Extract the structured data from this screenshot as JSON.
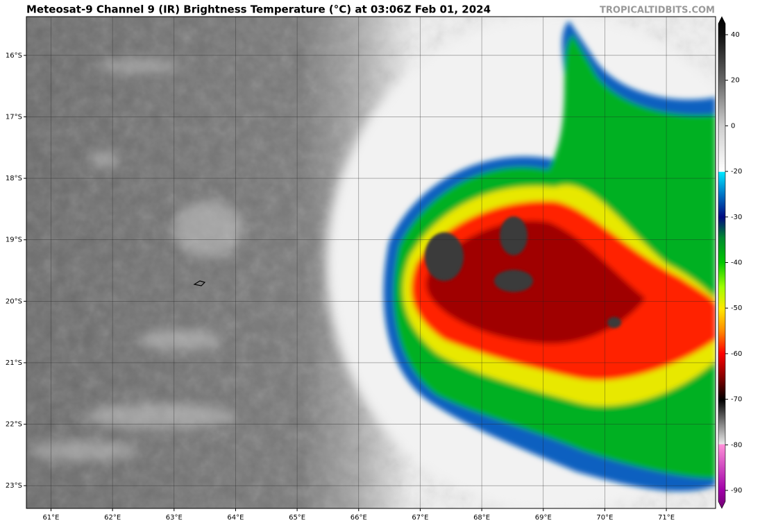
{
  "header": {
    "title": "Meteosat-9 Channel 9 (IR) Brightness Temperature (°C) at 03:06Z Feb 01, 2024",
    "credit": "TROPICALTIDBITS.COM"
  },
  "map": {
    "lonlim": [
      60.6,
      71.8
    ],
    "latlim": [
      -15.37,
      -23.37
    ],
    "lon_ticks": [
      {
        "value": 61,
        "label": "61°E"
      },
      {
        "value": 62,
        "label": "62°E"
      },
      {
        "value": 63,
        "label": "63°E"
      },
      {
        "value": 64,
        "label": "64°E"
      },
      {
        "value": 65,
        "label": "65°E"
      },
      {
        "value": 66,
        "label": "66°E"
      },
      {
        "value": 67,
        "label": "67°E"
      },
      {
        "value": 68,
        "label": "68°E"
      },
      {
        "value": 69,
        "label": "69°E"
      },
      {
        "value": 70,
        "label": "70°E"
      },
      {
        "value": 71,
        "label": "71°E"
      }
    ],
    "lat_ticks": [
      {
        "value": -16,
        "label": "16°S"
      },
      {
        "value": -17,
        "label": "17°S"
      },
      {
        "value": -18,
        "label": "18°S"
      },
      {
        "value": -19,
        "label": "19°S"
      },
      {
        "value": -20,
        "label": "20°S"
      },
      {
        "value": -21,
        "label": "21°S"
      },
      {
        "value": -22,
        "label": "22°S"
      },
      {
        "value": -23,
        "label": "23°S"
      }
    ]
  },
  "colorbar": {
    "ticks": [
      40,
      20,
      0,
      -20,
      -30,
      -40,
      -50,
      -60,
      -70,
      -80,
      -90
    ]
  }
}
